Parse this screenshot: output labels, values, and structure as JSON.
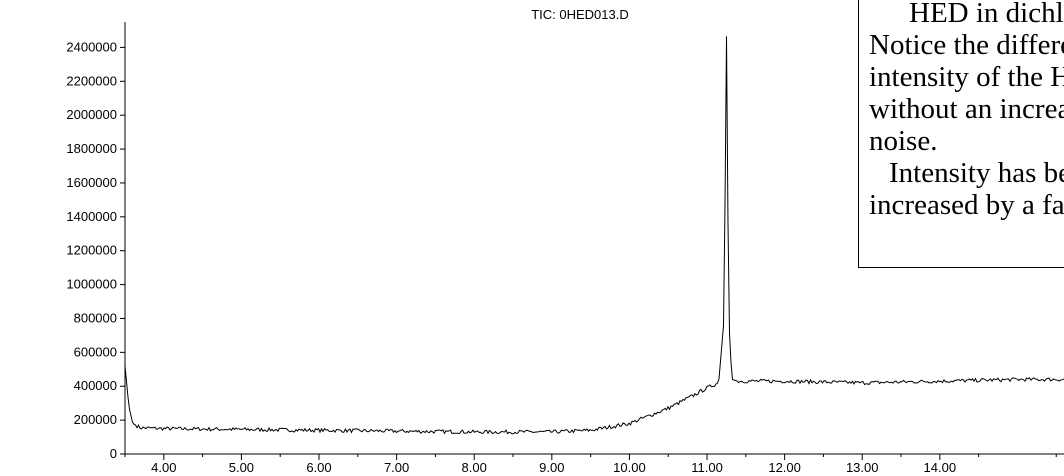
{
  "chart_data": {
    "type": "line",
    "title": "TIC: 0HED013.D",
    "xlabel": "",
    "ylabel": "",
    "xlim": [
      3.5,
      15.6
    ],
    "ylim": [
      0,
      2550000
    ],
    "x_ticks": [
      "4.00",
      "5.00",
      "6.00",
      "7.00",
      "8.00",
      "9.00",
      "10.00",
      "11.00",
      "12.00",
      "13.00",
      "14.00"
    ],
    "y_ticks": [
      "0",
      "200000",
      "400000",
      "600000",
      "800000",
      "1000000",
      "1200000",
      "1400000",
      "1600000",
      "1800000",
      "2000000",
      "2200000",
      "2400000"
    ],
    "series": [
      {
        "x": [
          3.5,
          3.55,
          3.6,
          3.7,
          4.0,
          5.0,
          6.0,
          7.0,
          8.0,
          9.0,
          9.5,
          10.0,
          10.5,
          10.8,
          11.0,
          11.15,
          11.22,
          11.25,
          11.28,
          11.32,
          11.4,
          12.0,
          13.0,
          14.0,
          15.0,
          15.6
        ],
        "y": [
          520000,
          280000,
          180000,
          155000,
          150000,
          145000,
          140000,
          135000,
          130000,
          130000,
          140000,
          180000,
          270000,
          340000,
          390000,
          420000,
          800000,
          2520000,
          800000,
          440000,
          430000,
          430000,
          420000,
          430000,
          440000,
          440000
        ]
      }
    ],
    "grid": false,
    "color": "#000000"
  },
  "annotation": {
    "lines": [
      "HED in dichloromethane.",
      "Notice the difference in",
      "intensity of the HED peak",
      "without an increase in",
      "noise.",
      "Intensity has been",
      "increased by a factor of"
    ]
  }
}
